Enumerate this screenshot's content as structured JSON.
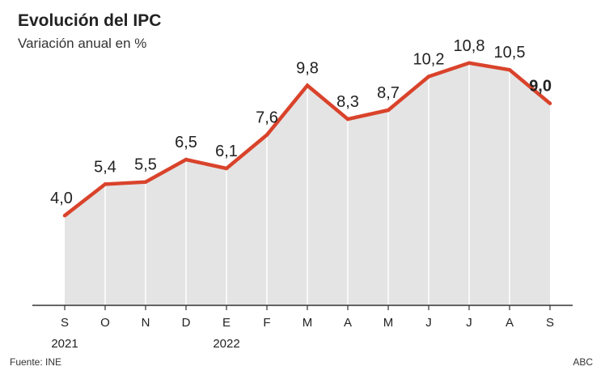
{
  "header": {
    "title": "Evolución del IPC",
    "subtitle": "Variación anual en %"
  },
  "footer": {
    "source": "Fuente: INE",
    "credit": "ABC"
  },
  "colors": {
    "line": "#d9432b",
    "area": "#e4e4e4",
    "axis": "#333333",
    "gridline": "#ffffff",
    "text": "#222222"
  },
  "chart_data": {
    "type": "area",
    "categories": [
      "S",
      "O",
      "N",
      "D",
      "E",
      "F",
      "M",
      "A",
      "M",
      "J",
      "J",
      "A",
      "S"
    ],
    "values": [
      4.0,
      5.4,
      5.5,
      6.5,
      6.1,
      7.6,
      9.8,
      8.3,
      8.7,
      10.2,
      10.8,
      10.5,
      9.0
    ],
    "labels": [
      "4,0",
      "5,4",
      "5,5",
      "6,5",
      "6,1",
      "7,6",
      "9,8",
      "8,3",
      "8,7",
      "10,2",
      "10,8",
      "10,5",
      "9,0"
    ],
    "highlight_last_label": true,
    "year_labels": [
      {
        "index": 0,
        "text": "2021"
      },
      {
        "index": 4,
        "text": "2022"
      }
    ],
    "title": "Evolución del IPC",
    "subtitle": "Variación anual en %",
    "xlabel": "",
    "ylabel": "",
    "ylim": [
      0,
      11.5
    ],
    "grid": "vertical",
    "legend": "none"
  }
}
